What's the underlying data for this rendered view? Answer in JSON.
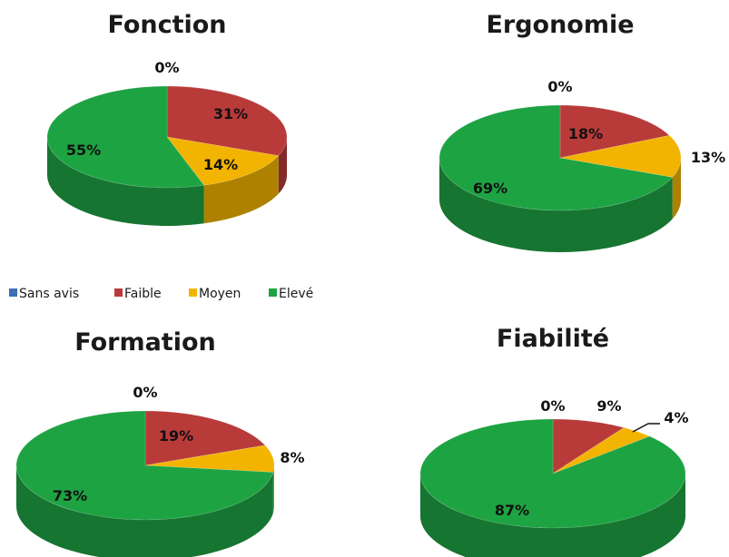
{
  "legend": {
    "items": [
      {
        "label": "Sans avis",
        "color": "#3c6fb6"
      },
      {
        "label": "Faible",
        "color": "#b83b3a"
      },
      {
        "label": "Moyen",
        "color": "#f2b400"
      },
      {
        "label": "Elevé",
        "color": "#1ea343"
      }
    ]
  },
  "chart_data": [
    {
      "type": "pie",
      "title": "Fonction",
      "categories": [
        "Sans avis",
        "Faible",
        "Moyen",
        "Elevé"
      ],
      "values": [
        0,
        31,
        14,
        55
      ],
      "data_labels": [
        "0%",
        "31%",
        "14%",
        "55%"
      ]
    },
    {
      "type": "pie",
      "title": "Ergonomie",
      "categories": [
        "Sans avis",
        "Faible",
        "Moyen",
        "Elevé"
      ],
      "values": [
        0,
        18,
        13,
        69
      ],
      "data_labels": [
        "0%",
        "18%",
        "13%",
        "69%"
      ]
    },
    {
      "type": "pie",
      "title": "Formation",
      "categories": [
        "Sans avis",
        "Faible",
        "Moyen",
        "Elevé"
      ],
      "values": [
        0,
        19,
        8,
        73
      ],
      "data_labels": [
        "0%",
        "19%",
        "8%",
        "73%"
      ]
    },
    {
      "type": "pie",
      "title": "Fiabilité",
      "categories": [
        "Sans avis",
        "Faible",
        "Moyen",
        "Elevé"
      ],
      "values": [
        0,
        9,
        4,
        87
      ],
      "data_labels": [
        "0%",
        "9%",
        "4%",
        "87%"
      ]
    }
  ]
}
